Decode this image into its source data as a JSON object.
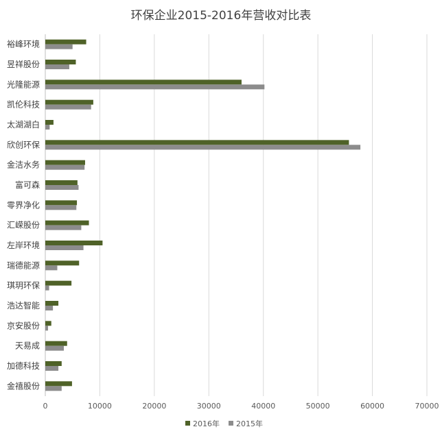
{
  "chart_data": {
    "type": "bar",
    "orientation": "horizontal",
    "title": "环保企业2015-2016年营收对比表",
    "categories": [
      "裕峰环境",
      "昱祥股份",
      "光隆能源",
      "凯伦科技",
      "太湖湖白",
      "欣创环保",
      "金洁水务",
      "富可森",
      "零界净化",
      "汇嵘股份",
      "左岸环境",
      "瑞德能源",
      "琪玥环保",
      "浩达智能",
      "京安股份",
      "天易成",
      "加德科技",
      "金禧股份"
    ],
    "series": [
      {
        "name": "2016年",
        "color": "#4f6228",
        "values": [
          7500,
          5600,
          36000,
          8800,
          1500,
          55700,
          7300,
          5900,
          5800,
          8000,
          10500,
          6200,
          4800,
          2400,
          1100,
          4000,
          3000,
          4900
        ]
      },
      {
        "name": "2015年",
        "color": "#8c8c8c",
        "values": [
          5000,
          4400,
          40200,
          8400,
          800,
          57800,
          7200,
          6100,
          5700,
          6600,
          7000,
          2200,
          700,
          1400,
          500,
          3400,
          2400,
          3000
        ]
      }
    ],
    "xlim": [
      0,
      70000
    ],
    "xticks": [
      "0",
      "10000",
      "20000",
      "30000",
      "40000",
      "50000",
      "60000",
      "70000"
    ],
    "grid": "vertical",
    "legend_position": "bottom"
  }
}
